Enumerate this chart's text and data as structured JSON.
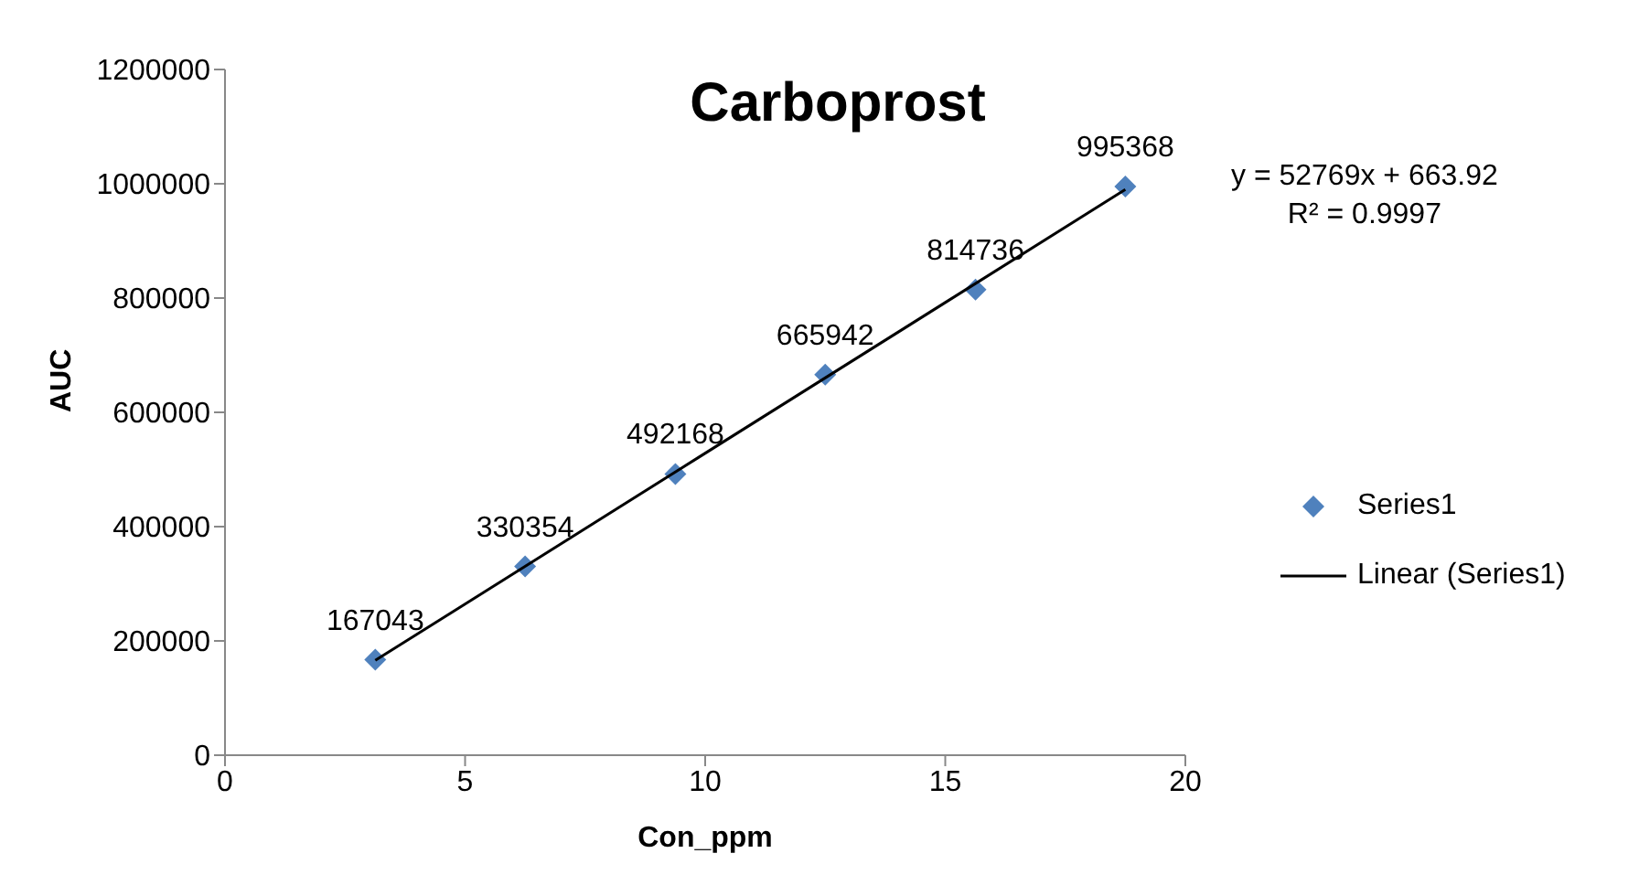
{
  "chart_data": {
    "type": "scatter",
    "title": "Carboprost",
    "xlabel": "Con_ppm",
    "ylabel": "AUC",
    "x": [
      3.13,
      6.25,
      9.38,
      12.5,
      15.63,
      18.75
    ],
    "series": [
      {
        "name": "Series1",
        "color": "#4f81bd",
        "values": [
          167043,
          330354,
          492168,
          665942,
          814736,
          995368
        ],
        "marker": "diamond",
        "value_labels": [
          "167043",
          "330354",
          "492168",
          "665942",
          "814736",
          "995368"
        ]
      },
      {
        "name": "Linear (Series1)",
        "type": "line",
        "color": "#000000",
        "x": [
          3.13,
          18.75
        ],
        "values": [
          166000,
          990000
        ],
        "marker": "none"
      }
    ],
    "xlim": [
      0,
      20
    ],
    "xticks": [
      0,
      5,
      10,
      15,
      20
    ],
    "ylim": [
      0,
      1200000
    ],
    "yticks": [
      0,
      200000,
      400000,
      600000,
      800000,
      1000000,
      1200000
    ],
    "grid": false,
    "legend": "right",
    "annotations": [
      "y = 52769x + 663.92",
      "R² = 0.9997"
    ]
  }
}
